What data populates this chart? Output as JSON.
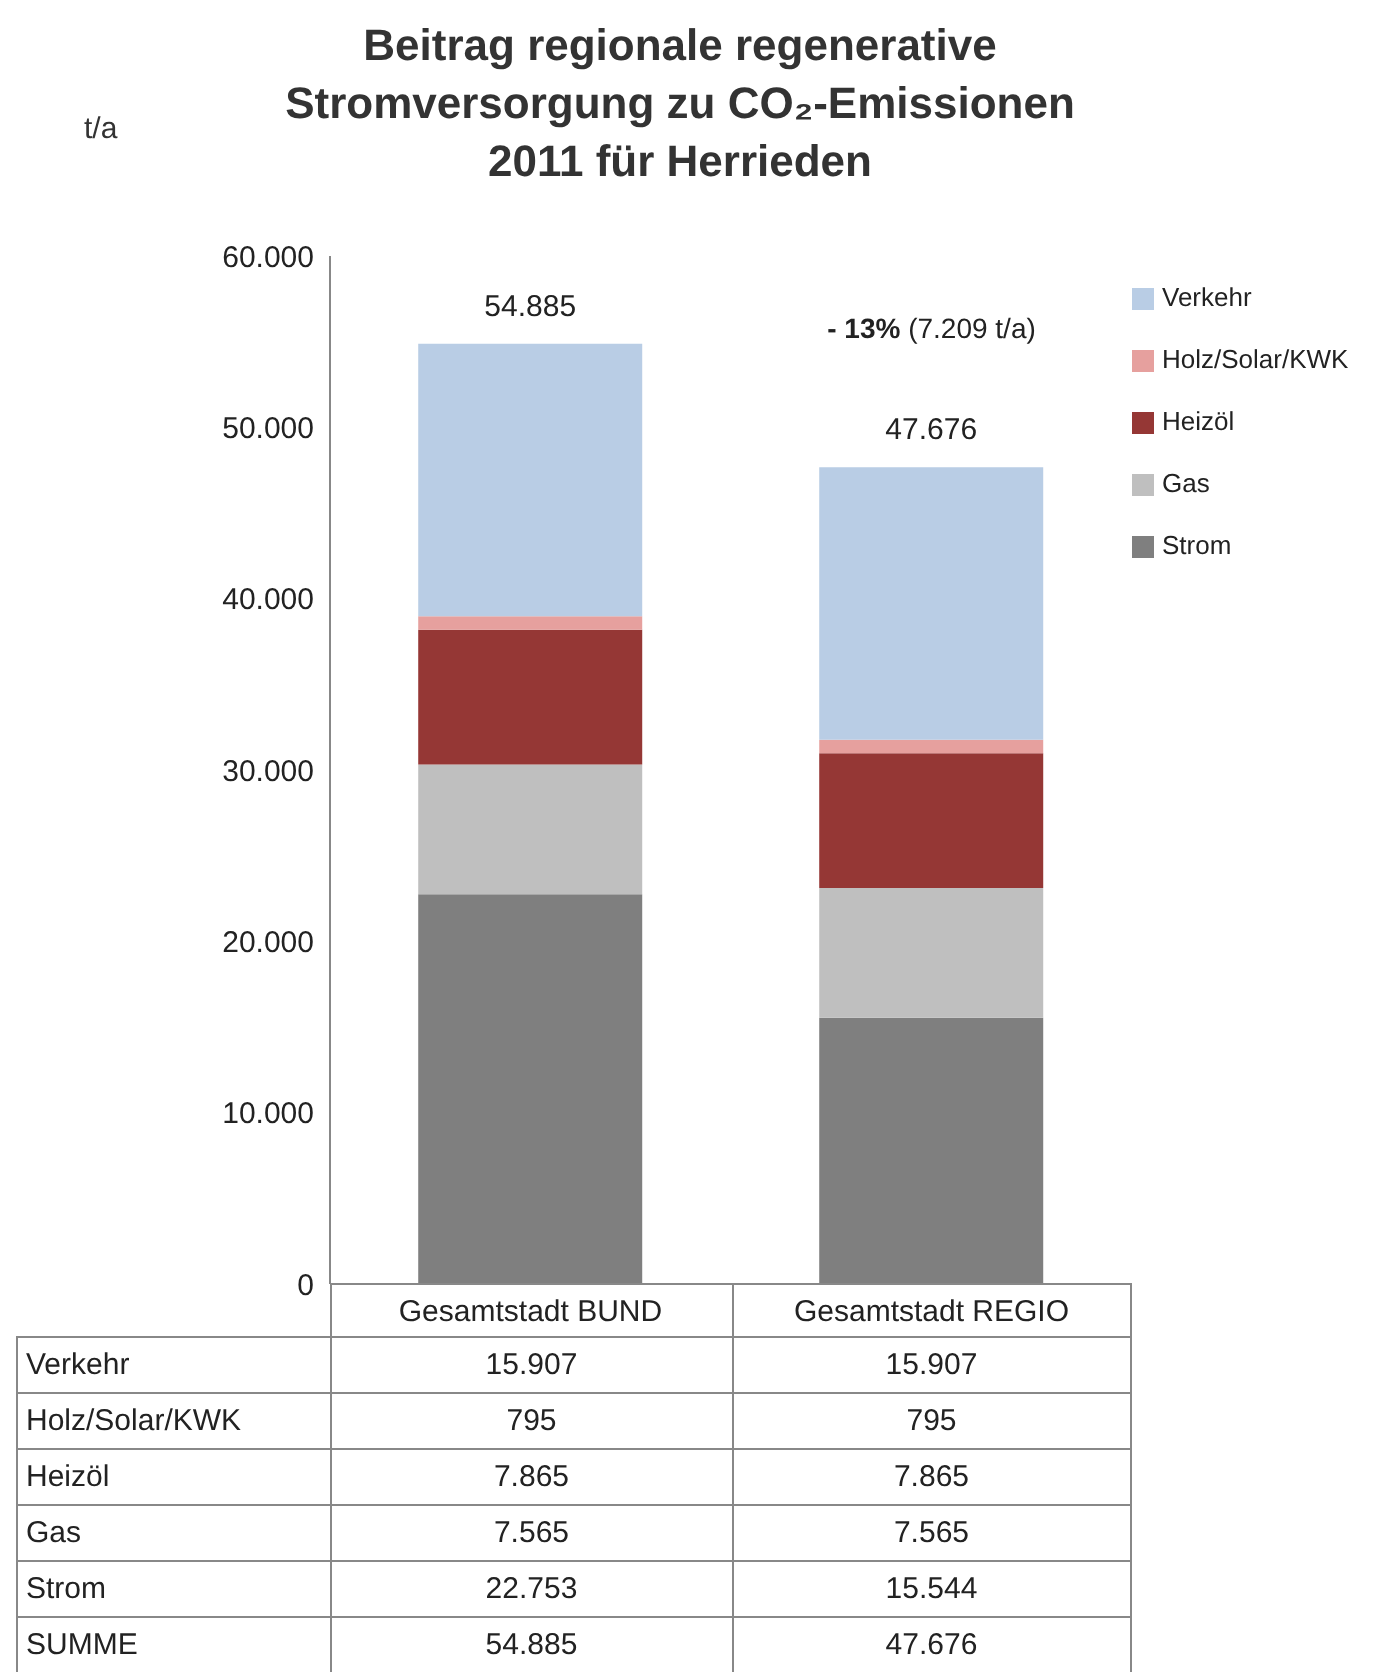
{
  "chart_data": {
    "type": "bar",
    "title": "Beitrag regionale regenerative Stromversorgung zu CO₂-Emissionen 2011 für Herrieden",
    "ylabel": "t/a",
    "categories": [
      "Gesamtstadt BUND",
      "Gesamtstadt REGIO"
    ],
    "stacked": true,
    "series": [
      {
        "name": "Strom",
        "color": "#7f7f7f",
        "values": [
          22753,
          15544
        ],
        "value_labels": [
          "22.753",
          "15.544"
        ]
      },
      {
        "name": "Gas",
        "color": "#bfbfbf",
        "values": [
          7565,
          7565
        ],
        "value_labels": [
          "7.565",
          "7.565"
        ]
      },
      {
        "name": "Heizöl",
        "color": "#953735",
        "values": [
          7865,
          7865
        ],
        "value_labels": [
          "7.865",
          "7.865"
        ]
      },
      {
        "name": "Holz/Solar/KWK",
        "color": "#e6a09e",
        "values": [
          795,
          795
        ],
        "value_labels": [
          "795",
          "795"
        ]
      },
      {
        "name": "Verkehr",
        "color": "#b9cde5",
        "values": [
          15907,
          15907
        ],
        "value_labels": [
          "15.907",
          "15.907"
        ]
      }
    ],
    "totals": [
      "54.885",
      "47.676"
    ],
    "ylim": [
      0,
      60000
    ],
    "yticks": [
      0,
      {
        "value": 10000,
        "label": "10.000"
      },
      {
        "value": 20000,
        "label": "20.000"
      },
      {
        "value": 30000,
        "label": "30.000"
      },
      {
        "value": 40000,
        "label": "40.000"
      },
      {
        "value": 50000,
        "label": "50.000"
      },
      {
        "value": 60000,
        "label": "60.000"
      }
    ],
    "grid": false,
    "legend": "top right",
    "annotations": [
      "- 13% (7.209 t/a)",
      "SUMME"
    ]
  }
}
